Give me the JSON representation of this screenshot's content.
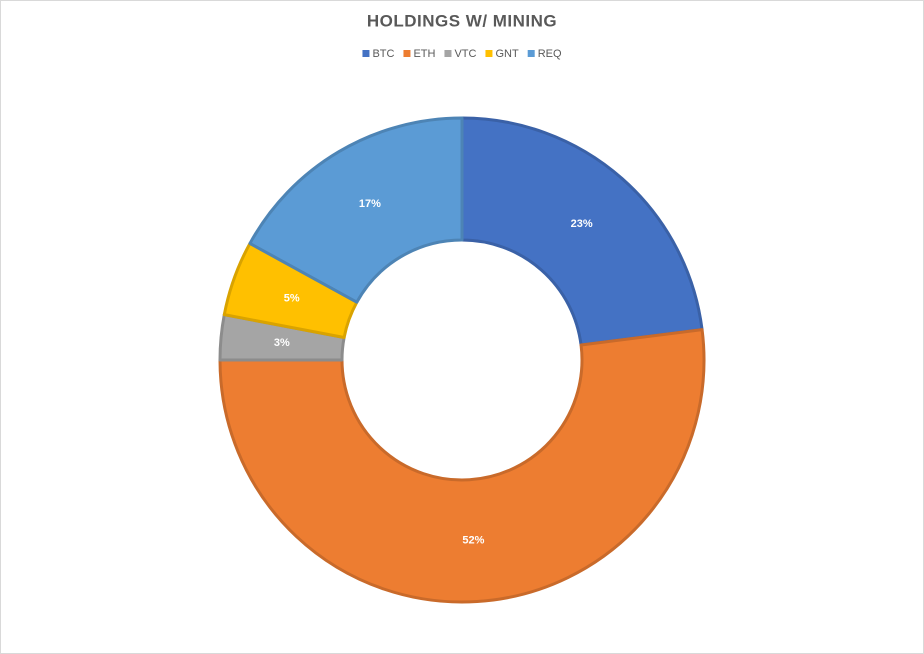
{
  "chart_data": {
    "type": "donut",
    "title": "HOLDINGS W/ MINING",
    "categories": [
      "BTC",
      "ETH",
      "VTC",
      "GNT",
      "REQ"
    ],
    "values": [
      23,
      52,
      3,
      5,
      17
    ],
    "value_labels": [
      "23%",
      "52%",
      "3%",
      "5%",
      "17%"
    ],
    "colors": [
      "#4472c4",
      "#ed7d31",
      "#a5a5a5",
      "#ffc000",
      "#5b9bd5"
    ],
    "legend": "top"
  }
}
